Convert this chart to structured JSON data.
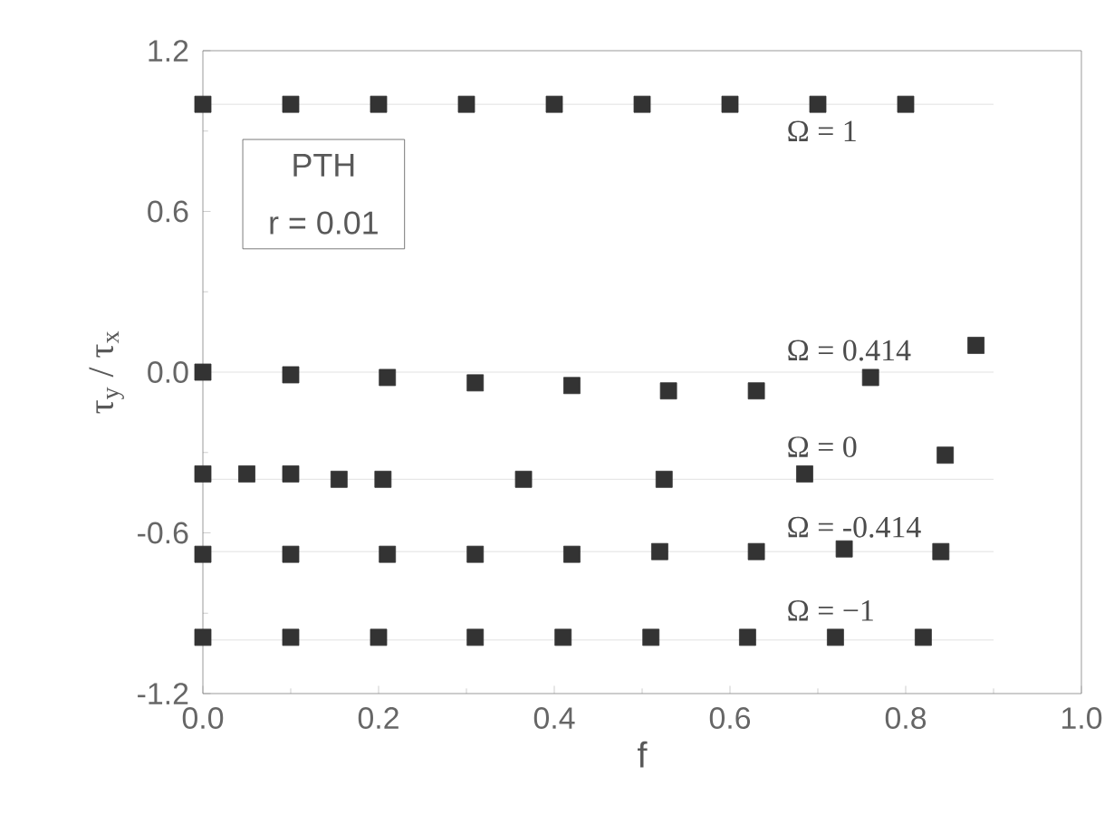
{
  "chart_data": {
    "type": "scatter",
    "xlabel": "f",
    "ylabel": "τ$_{y}$ / τ$_{x}$",
    "xlim": [
      0,
      1
    ],
    "ylim": [
      -1.2,
      1.2
    ],
    "xticks": [
      {
        "value": 0,
        "label": "0.0"
      },
      0.2,
      0.4,
      0.6,
      0.8,
      {
        "value": 1,
        "label": "1.0"
      }
    ],
    "yticks": [
      -1.2,
      -0.6,
      {
        "value": 0,
        "label": "0.0"
      },
      0.6,
      1.2
    ],
    "marker": "square",
    "grid": false,
    "annotations": [
      "PTH",
      "r = 0.01"
    ],
    "ref_lines": [
      {
        "axis": "y",
        "value": 1,
        "color": "#d9d9d9"
      },
      {
        "axis": "y",
        "value": 0,
        "color": "#d9d9d9"
      },
      {
        "axis": "y",
        "value": -0.4,
        "color": "#d9d9d9"
      },
      {
        "axis": "y",
        "value": -0.67,
        "color": "#d9d9d9"
      },
      {
        "axis": "y",
        "value": -1,
        "color": "#d9d9d9"
      }
    ],
    "series": [
      {
        "name": "Ω = 1",
        "color": "#333333",
        "x": [
          0,
          0.1,
          0.2,
          0.3,
          0.4,
          0.5,
          0.6,
          0.7,
          0.8
        ],
        "values": [
          1,
          1,
          1,
          1,
          1,
          1,
          1,
          1,
          1
        ]
      },
      {
        "name": "Ω =  0.414",
        "color": "#333333",
        "x": [
          0,
          0.1,
          0.21,
          0.31,
          0.42,
          0.53,
          0.63,
          0.76,
          0.88
        ],
        "values": [
          0,
          -0.01,
          -0.02,
          -0.04,
          -0.05,
          -0.07,
          -0.07,
          -0.02,
          0.1
        ]
      },
      {
        "name": "Ω = 0",
        "color": "#333333",
        "x": [
          0,
          0.05,
          0.1,
          0.155,
          0.205,
          0.365,
          0.525,
          0.685,
          0.845
        ],
        "values": [
          -0.38,
          -0.38,
          -0.38,
          -0.4,
          -0.4,
          -0.4,
          -0.4,
          -0.38,
          -0.31
        ]
      },
      {
        "name": "Ω = -0.414",
        "color": "#333333",
        "x": [
          0,
          0.1,
          0.21,
          0.31,
          0.42,
          0.52,
          0.63,
          0.73,
          0.84
        ],
        "values": [
          -0.68,
          -0.68,
          -0.68,
          -0.68,
          -0.68,
          -0.67,
          -0.67,
          -0.66,
          -0.67
        ]
      },
      {
        "name": "Ω = −1",
        "color": "#333333",
        "x": [
          0,
          0.1,
          0.2,
          0.31,
          0.41,
          0.51,
          0.62,
          0.72,
          0.82
        ],
        "values": [
          -0.99,
          -0.99,
          -0.99,
          -0.99,
          -0.99,
          -0.99,
          -0.99,
          -0.99,
          -0.99
        ]
      }
    ]
  }
}
